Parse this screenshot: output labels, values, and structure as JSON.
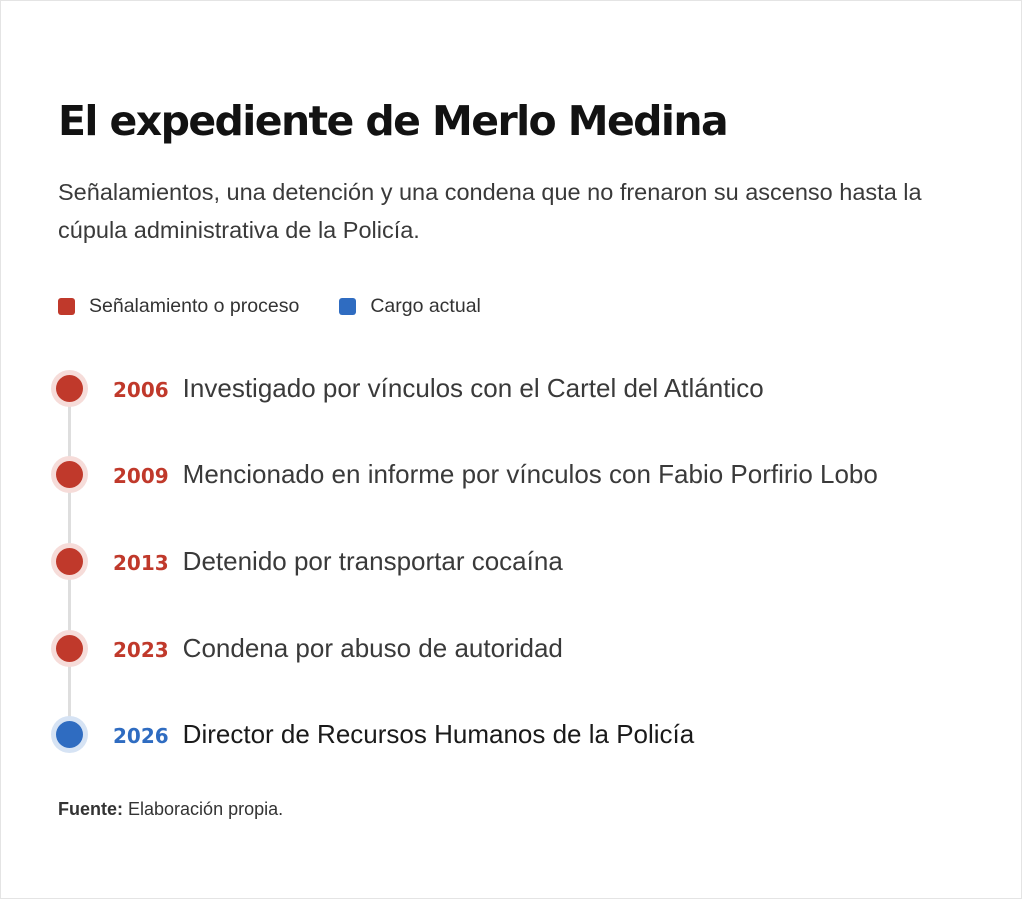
{
  "title": "El expediente de Merlo Medina",
  "subtitle": "Señalamientos, una detención y una condena que no frenaron su ascenso hasta la cúpula administrativa de la Policía.",
  "legend": [
    {
      "label": "Señalamiento o proceso",
      "color": "#c0392b"
    },
    {
      "label": "Cargo actual",
      "color": "#2f6cc1"
    }
  ],
  "events": [
    {
      "year": "2006",
      "text": "Investigado por vínculos con el Cartel del Atlántico",
      "category": "process"
    },
    {
      "year": "2009",
      "text": "Mencionado en informe por vínculos con Fabio Porfirio Lobo",
      "category": "process"
    },
    {
      "year": "2013",
      "text": "Detenido por transportar cocaína",
      "category": "process"
    },
    {
      "year": "2023",
      "text": "Condena por abuso de autoridad",
      "category": "process"
    },
    {
      "year": "2026",
      "text": "Director de Recursos Humanos de la Policía",
      "category": "current"
    }
  ],
  "source": {
    "label": "Fuente:",
    "text": "Elaboración propia."
  }
}
